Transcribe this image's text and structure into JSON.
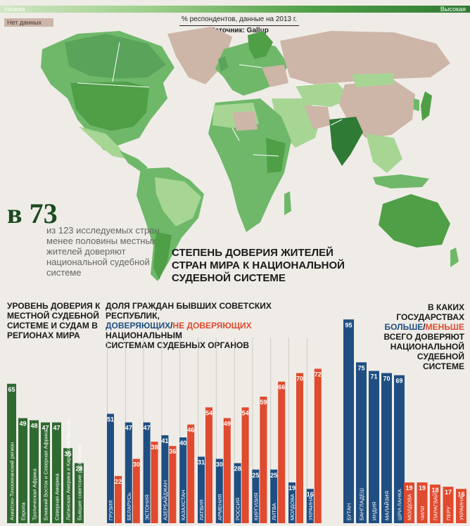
{
  "legend": {
    "low": "Низкая",
    "high": "Высокая",
    "no_data": "Нет данных"
  },
  "caption": "% респондентов, данные на 2013 г.",
  "source": "Источник: Gallup",
  "stat": {
    "number": "в 73",
    "text": "из 123 исследуемых стран менее половины местных жителей доверяют национальной судебной системе"
  },
  "map_title": "СТЕПЕНЬ ДОВЕРИЯ ЖИТЕЛЕЙ СТРАН МИРА К НАЦИОНАЛЬНОЙ СУДЕБНОЙ СИСТЕМЕ",
  "colors": {
    "green_dark": "#2f6a31",
    "blue": "#1f4f82",
    "red": "#e04a2e",
    "map_green": "#6fb86a",
    "map_light": "#a7d694",
    "map_nodata": "#cdb5a8"
  },
  "chart_data": [
    {
      "type": "bar",
      "title": "УРОВЕНЬ ДОВЕРИЯ К МЕСТНОЙ СУДЕБНОЙ СИСТЕМЕ И СУДАМ В РЕГИОНАХ МИРА",
      "categories": [
        "Азиатско-Тихоокеанский регион",
        "Европа",
        "Тропическая Африка",
        "Ближний Восток и Северная Африка",
        "Северная Америка",
        "Латинская Америка и Карибский бассейн",
        "Бывшие советские республики"
      ],
      "values": [
        65,
        49,
        48,
        47,
        47,
        35,
        28
      ],
      "ylim": [
        0,
        100
      ]
    },
    {
      "type": "bar",
      "title_parts": [
        "ДОЛЯ ГРАЖДАН БЫВШИХ СОВЕТСКИХ РЕСПУБЛИК,",
        "ДОВЕРЯЮЩИХ",
        "/",
        "НЕ ДОВЕРЯЮЩИХ",
        " НАЦИОНАЛЬНЫМ",
        "СИСТЕМАМ СУДЕБНЫХ ОРГАНОВ"
      ],
      "categories": [
        "ГРУЗИЯ",
        "БЕЛАРУСЬ",
        "ЭСТОНИЯ",
        "АЗЕРБАЙДЖАН",
        "КАЗАХСТАН",
        "ЛАТВИЯ",
        "АРМЕНИЯ",
        "РОССИЯ",
        "КИРГИЗИЯ",
        "ЛИТВА",
        "МОЛДОВА",
        "УКРАИНА"
      ],
      "series": [
        {
          "name": "ДОВЕРЯЮЩИХ",
          "values": [
            51,
            47,
            47,
            41,
            40,
            31,
            30,
            28,
            25,
            25,
            19,
            16
          ]
        },
        {
          "name": "НЕ ДОВЕРЯЮЩИХ",
          "values": [
            22,
            30,
            38,
            36,
            46,
            54,
            49,
            54,
            59,
            66,
            70,
            72
          ]
        }
      ],
      "ylim": [
        0,
        100
      ]
    },
    {
      "type": "bar",
      "title_parts": [
        "В КАКИХ ГОСУДАРСТВАХ",
        "БОЛЬШЕ",
        "/",
        "МЕНЬШЕ",
        "ВСЕГО ДОВЕРЯЮТ",
        "НАЦИОНАЛЬНОЙ",
        "СУДЕБНОЙ",
        "СИСТЕМЕ"
      ],
      "groups": [
        {
          "name": "БОЛЬШЕ",
          "categories": [
            "БУТАН",
            "БАНГЛАДЕШ",
            "ИНДИЯ",
            "МАЛАЙЗИЯ",
            "ШРИ-ЛАНКА"
          ],
          "values": [
            95,
            75,
            71,
            70,
            69
          ]
        },
        {
          "name": "МЕНЬШЕ",
          "categories": [
            "МОЛДОВА",
            "ЧИЛИ",
            "ПАРАГВАЙ",
            "ПЕРУ",
            "УКРАИНА"
          ],
          "values": [
            19,
            19,
            18,
            17,
            16
          ]
        }
      ],
      "ylim": [
        0,
        100
      ]
    }
  ]
}
